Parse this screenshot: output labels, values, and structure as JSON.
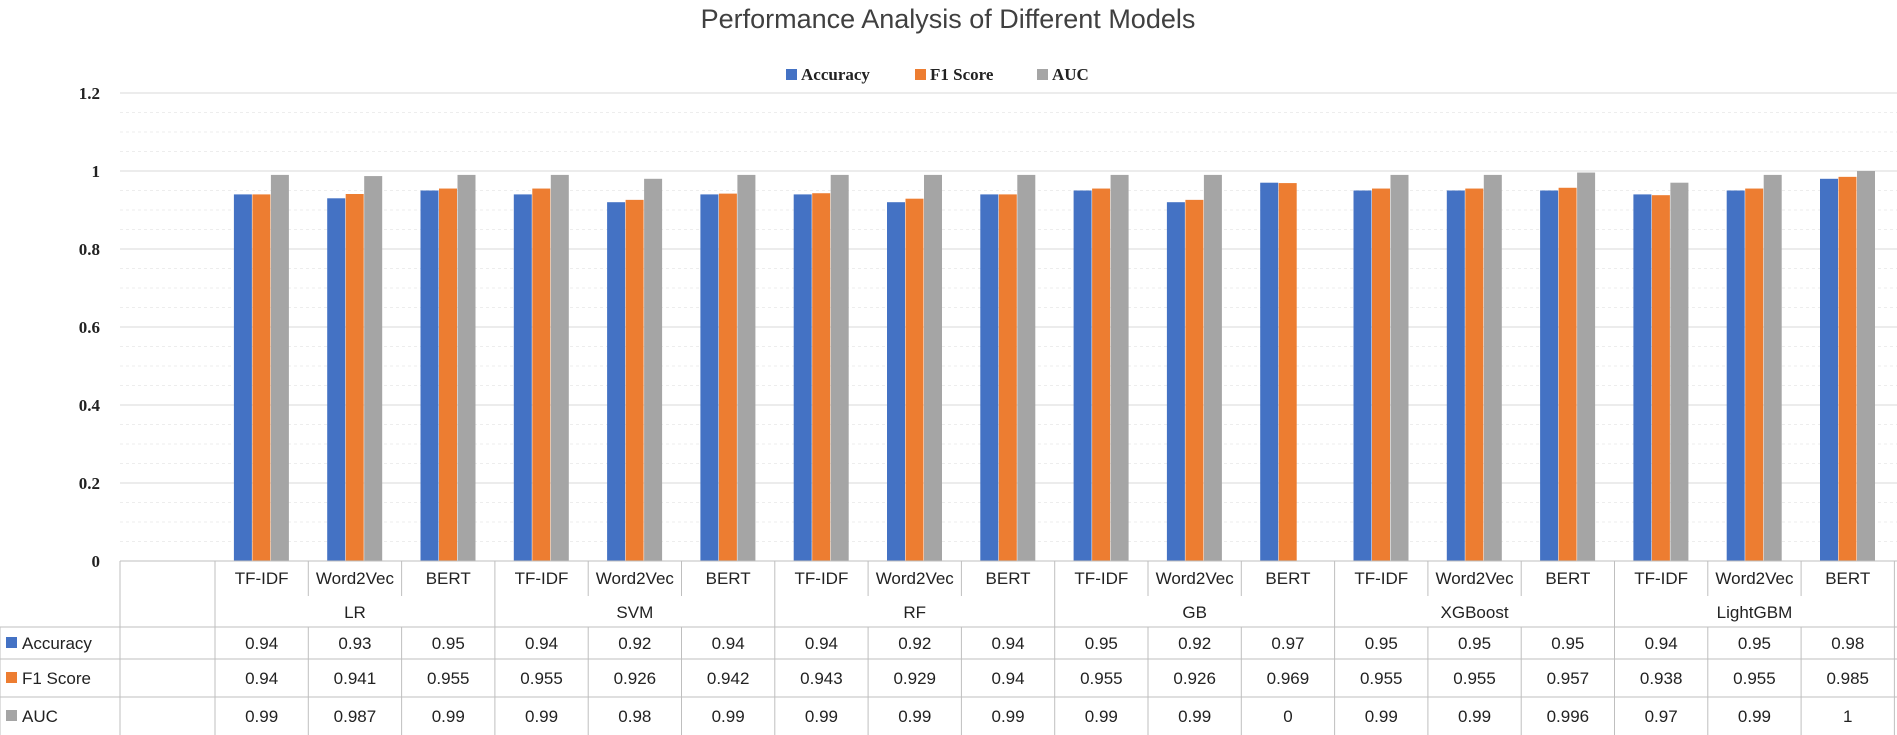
{
  "chart_data": {
    "type": "bar",
    "title": "Performance Analysis of Different Models",
    "groups": [
      "LR",
      "SVM",
      "RF",
      "GB",
      "XGBoost",
      "LightGBM"
    ],
    "subcategories": [
      "TF-IDF",
      "Word2Vec",
      "BERT"
    ],
    "ylim": [
      0,
      1.2
    ],
    "yticks": [
      "0",
      "0.2",
      "0.4",
      "0.6",
      "0.8",
      "1",
      "1.2"
    ],
    "grid": true,
    "legend_position": "top",
    "series": [
      {
        "name": "Accuracy",
        "color": "#4472C4",
        "values": [
          0.94,
          0.93,
          0.95,
          0.94,
          0.92,
          0.94,
          0.94,
          0.92,
          0.94,
          0.95,
          0.92,
          0.97,
          0.95,
          0.95,
          0.95,
          0.94,
          0.95,
          0.98
        ],
        "labels": [
          "0.94",
          "0.93",
          "0.95",
          "0.94",
          "0.92",
          "0.94",
          "0.94",
          "0.92",
          "0.94",
          "0.95",
          "0.92",
          "0.97",
          "0.95",
          "0.95",
          "0.95",
          "0.94",
          "0.95",
          "0.98"
        ]
      },
      {
        "name": "F1 Score",
        "color": "#ED7D31",
        "values": [
          0.94,
          0.941,
          0.955,
          0.955,
          0.926,
          0.942,
          0.943,
          0.929,
          0.94,
          0.955,
          0.926,
          0.969,
          0.955,
          0.955,
          0.957,
          0.938,
          0.955,
          0.985
        ],
        "labels": [
          "0.94",
          "0.941",
          "0.955",
          "0.955",
          "0.926",
          "0.942",
          "0.943",
          "0.929",
          "0.94",
          "0.955",
          "0.926",
          "0.969",
          "0.955",
          "0.955",
          "0.957",
          "0.938",
          "0.955",
          "0.985"
        ]
      },
      {
        "name": "AUC",
        "color": "#A5A5A5",
        "values": [
          0.99,
          0.987,
          0.99,
          0.99,
          0.98,
          0.99,
          0.99,
          0.99,
          0.99,
          0.99,
          0.99,
          0,
          0.99,
          0.99,
          0.996,
          0.97,
          0.99,
          1
        ],
        "labels": [
          "0.99",
          "0.987",
          "0.99",
          "0.99",
          "0.98",
          "0.99",
          "0.99",
          "0.99",
          "0.99",
          "0.99",
          "0.99",
          "0",
          "0.99",
          "0.99",
          "0.996",
          "0.97",
          "0.99",
          "1"
        ]
      }
    ]
  }
}
